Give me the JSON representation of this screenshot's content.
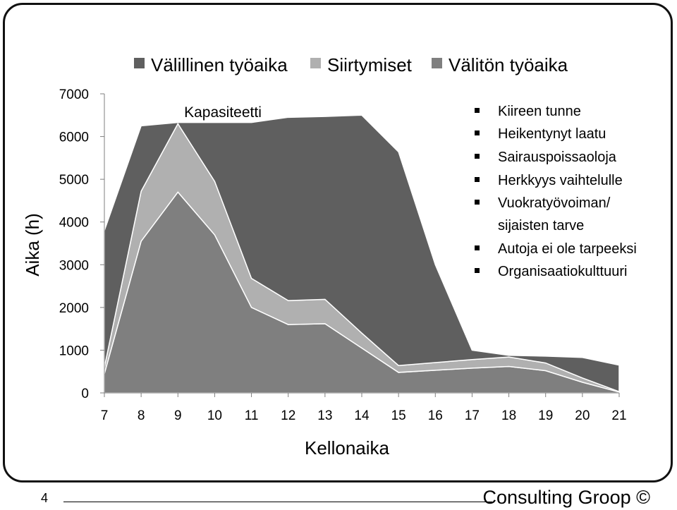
{
  "slide": {
    "page_number": "4",
    "brand": "Consulting Groop ©"
  },
  "chart_data": {
    "type": "area",
    "stacked": true,
    "x": [
      7,
      8,
      9,
      10,
      11,
      12,
      13,
      14,
      15,
      16,
      17,
      18,
      19,
      20,
      21
    ],
    "xlabel": "Kellonaika",
    "ylabel": "Aika (h)",
    "ylim": [
      0,
      7000
    ],
    "yticks": [
      0,
      1000,
      2000,
      3000,
      4000,
      5000,
      6000,
      7000
    ],
    "grid": false,
    "legend_position": "top",
    "series": [
      {
        "name": "Välitön työaika",
        "color": "#7f7f7f",
        "values": [
          450,
          3550,
          4700,
          3700,
          2000,
          1600,
          1620,
          1050,
          480,
          530,
          580,
          620,
          520,
          250,
          20
        ]
      },
      {
        "name": "Siirtymiset",
        "color": "#b0b0b0",
        "values": [
          150,
          1170,
          1600,
          1250,
          680,
          560,
          570,
          350,
          160,
          180,
          200,
          220,
          180,
          100,
          10
        ]
      },
      {
        "name": "Välillinen työaika",
        "color": "#5f5f5f",
        "values": [
          3200,
          1530,
          30,
          1380,
          3650,
          4290,
          4280,
          5100,
          5000,
          2290,
          220,
          40,
          160,
          480,
          620
        ]
      }
    ],
    "legend": [
      "Välillinen työaika",
      "Siirtymiset",
      "Välitön työaika"
    ],
    "annotations": {
      "capacity_label": "Kapasiteetti",
      "notes": [
        "Kiireen tunne",
        "Heikentynyt laatu",
        "Sairauspoissaoloja",
        "Herkkyys vaihtelulle",
        "Vuokratyövoiman/",
        "sijaisten tarve",
        "Autoja ei ole tarpeeksi",
        "Organisaatiokulttuuri"
      ]
    }
  }
}
